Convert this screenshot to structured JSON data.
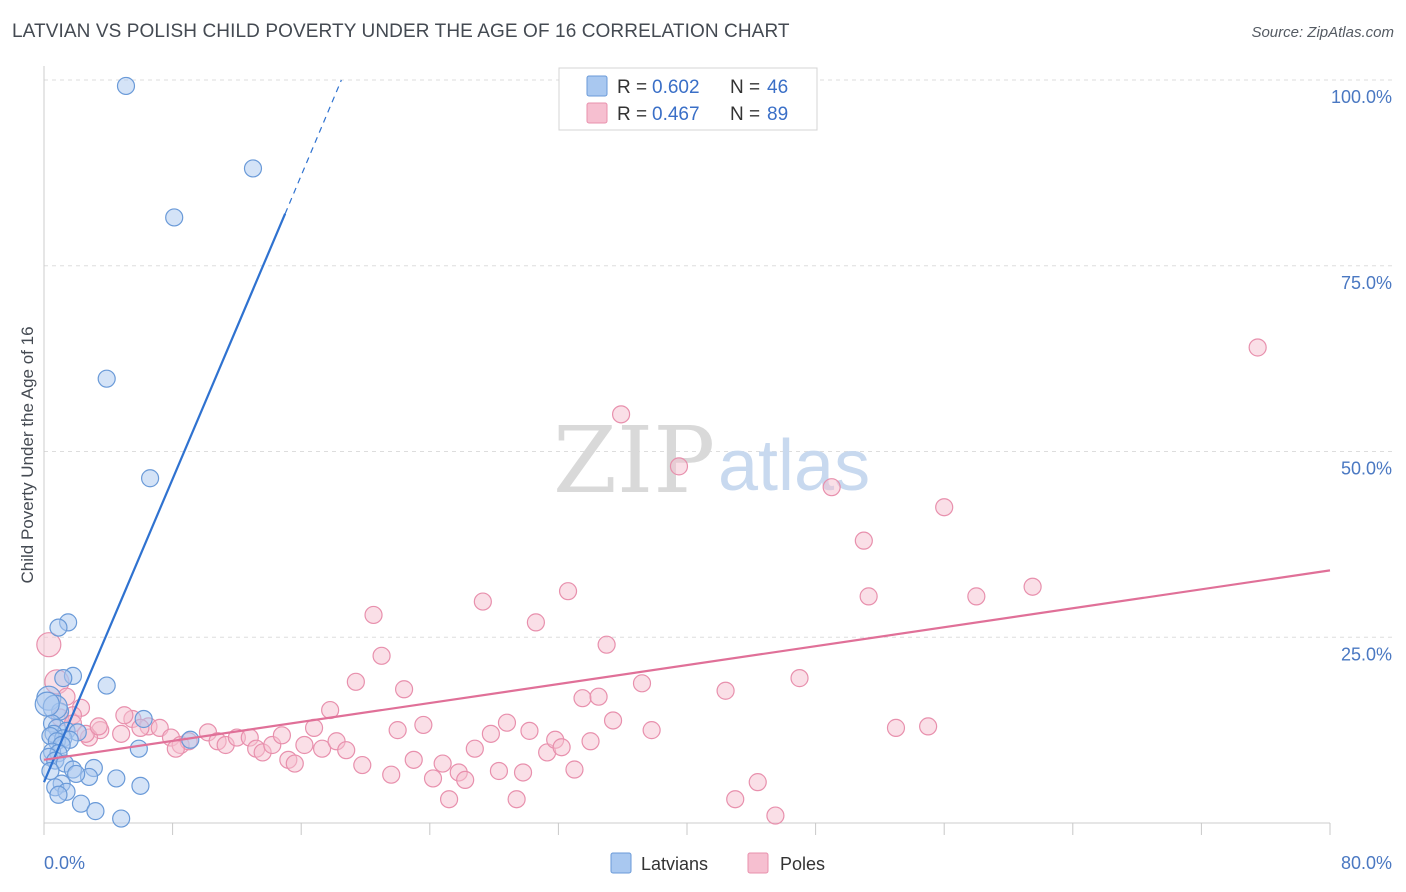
{
  "title": "LATVIAN VS POLISH CHILD POVERTY UNDER THE AGE OF 16 CORRELATION CHART",
  "source": "Source: ZipAtlas.com",
  "watermark": {
    "zip": "ZIP",
    "atlas": "atlas"
  },
  "colors": {
    "latvian_fill": "#a9c8f0",
    "latvian_stroke": "#6a9ad8",
    "latvian_line": "#2f72d0",
    "polish_fill": "#f6bfd0",
    "polish_stroke": "#e890ad",
    "polish_line": "#e07098",
    "tick_label": "#4a78c2",
    "grid": "#dddddd"
  },
  "legend": {
    "series": [
      {
        "r_label": "R =",
        "r_value": "0.602",
        "n_label": "N =",
        "n_value": "46"
      },
      {
        "r_label": "R =",
        "r_value": "0.467",
        "n_label": "N =",
        "n_value": "89"
      }
    ]
  },
  "bottom_legend": [
    "Latvians",
    "Poles"
  ],
  "chart_data": {
    "type": "scatter",
    "title": "LATVIAN VS POLISH CHILD POVERTY UNDER THE AGE OF 16 CORRELATION CHART",
    "xlabel": "",
    "ylabel": "Child Poverty Under the Age of 16",
    "xlim": [
      0,
      80
    ],
    "ylim": [
      0,
      100
    ],
    "x_tick_labels": [
      "0.0%",
      "80.0%"
    ],
    "y_tick_labels": [
      "100.0%",
      "75.0%",
      "50.0%",
      "25.0%"
    ],
    "y_ticks": [
      100,
      75,
      50,
      25
    ],
    "grid": true,
    "legend_position": "top-center",
    "series": [
      {
        "name": "Latvians",
        "points": [
          [
            5.1,
            99.2
          ],
          [
            13.0,
            88.1
          ],
          [
            8.1,
            81.5
          ],
          [
            3.9,
            59.8
          ],
          [
            6.6,
            46.4
          ],
          [
            1.5,
            27.0
          ],
          [
            0.9,
            26.3
          ],
          [
            1.8,
            19.8
          ],
          [
            3.9,
            18.5
          ],
          [
            1.2,
            19.5
          ],
          [
            0.3,
            16.8
          ],
          [
            1.0,
            15.0
          ],
          [
            0.7,
            15.6
          ],
          [
            6.2,
            14.0
          ],
          [
            0.5,
            13.4
          ],
          [
            0.8,
            12.8
          ],
          [
            1.4,
            12.4
          ],
          [
            2.1,
            12.2
          ],
          [
            0.6,
            12.0
          ],
          [
            0.4,
            11.7
          ],
          [
            1.2,
            11.4
          ],
          [
            0.8,
            11.0
          ],
          [
            1.6,
            11.2
          ],
          [
            9.1,
            11.2
          ],
          [
            1.1,
            10.5
          ],
          [
            5.9,
            10.0
          ],
          [
            0.5,
            9.6
          ],
          [
            0.9,
            9.4
          ],
          [
            0.3,
            8.9
          ],
          [
            0.7,
            8.4
          ],
          [
            1.3,
            8.0
          ],
          [
            3.1,
            7.4
          ],
          [
            1.8,
            7.2
          ],
          [
            0.4,
            7.0
          ],
          [
            2.8,
            6.2
          ],
          [
            2.0,
            6.6
          ],
          [
            4.5,
            6.0
          ],
          [
            1.1,
            5.3
          ],
          [
            6.0,
            5.0
          ],
          [
            0.7,
            4.8
          ],
          [
            1.4,
            4.2
          ],
          [
            0.9,
            3.8
          ],
          [
            2.3,
            2.6
          ],
          [
            3.2,
            1.6
          ],
          [
            4.8,
            0.6
          ],
          [
            0.2,
            16.0
          ]
        ]
      },
      {
        "name": "Poles",
        "points": [
          [
            0.3,
            24.0
          ],
          [
            0.8,
            19.0
          ],
          [
            1.4,
            17.0
          ],
          [
            2.3,
            15.5
          ],
          [
            1.8,
            14.5
          ],
          [
            3.5,
            12.5
          ],
          [
            2.8,
            11.5
          ],
          [
            4.8,
            12.0
          ],
          [
            5.5,
            14.0
          ],
          [
            6.5,
            13.0
          ],
          [
            7.2,
            12.8
          ],
          [
            7.9,
            11.5
          ],
          [
            8.5,
            10.5
          ],
          [
            9.0,
            11.0
          ],
          [
            10.2,
            12.2
          ],
          [
            10.8,
            11.0
          ],
          [
            11.3,
            10.5
          ],
          [
            12.0,
            11.5
          ],
          [
            12.8,
            11.5
          ],
          [
            13.2,
            10.0
          ],
          [
            13.6,
            9.5
          ],
          [
            14.2,
            10.5
          ],
          [
            14.8,
            11.8
          ],
          [
            15.2,
            8.5
          ],
          [
            15.6,
            8.0
          ],
          [
            16.2,
            10.5
          ],
          [
            16.8,
            12.8
          ],
          [
            17.3,
            10.0
          ],
          [
            17.8,
            15.2
          ],
          [
            18.2,
            11.0
          ],
          [
            18.8,
            9.8
          ],
          [
            19.4,
            19.0
          ],
          [
            19.8,
            7.8
          ],
          [
            20.5,
            28.0
          ],
          [
            21.0,
            22.5
          ],
          [
            21.6,
            6.5
          ],
          [
            22.0,
            12.5
          ],
          [
            22.4,
            18.0
          ],
          [
            23.0,
            8.5
          ],
          [
            23.6,
            13.2
          ],
          [
            24.2,
            6.0
          ],
          [
            24.8,
            8.0
          ],
          [
            25.2,
            3.2
          ],
          [
            25.8,
            6.8
          ],
          [
            26.2,
            5.8
          ],
          [
            26.8,
            10.0
          ],
          [
            27.3,
            29.8
          ],
          [
            27.8,
            12.0
          ],
          [
            28.3,
            7.0
          ],
          [
            28.8,
            13.5
          ],
          [
            29.4,
            3.2
          ],
          [
            29.8,
            6.8
          ],
          [
            30.2,
            12.4
          ],
          [
            30.6,
            27.0
          ],
          [
            31.3,
            9.5
          ],
          [
            31.8,
            11.2
          ],
          [
            32.2,
            10.2
          ],
          [
            32.6,
            31.2
          ],
          [
            33.0,
            7.2
          ],
          [
            33.5,
            16.8
          ],
          [
            34.0,
            11.0
          ],
          [
            34.5,
            17.0
          ],
          [
            35.0,
            24.0
          ],
          [
            35.4,
            13.8
          ],
          [
            35.9,
            55.0
          ],
          [
            37.2,
            18.8
          ],
          [
            37.8,
            12.5
          ],
          [
            39.5,
            48.0
          ],
          [
            42.4,
            17.8
          ],
          [
            43.0,
            3.2
          ],
          [
            44.4,
            5.5
          ],
          [
            45.5,
            1.0
          ],
          [
            47.0,
            19.5
          ],
          [
            49.0,
            45.2
          ],
          [
            51.0,
            38.0
          ],
          [
            51.3,
            30.5
          ],
          [
            53.0,
            12.8
          ],
          [
            55.0,
            13.0
          ],
          [
            56.0,
            42.5
          ],
          [
            58.0,
            30.5
          ],
          [
            61.5,
            31.8
          ],
          [
            75.5,
            64.0
          ],
          [
            1.0,
            14.2
          ],
          [
            1.8,
            13.4
          ],
          [
            2.6,
            12.0
          ],
          [
            3.4,
            13.0
          ],
          [
            5.0,
            14.5
          ],
          [
            6.0,
            12.8
          ],
          [
            8.2,
            10.0
          ]
        ]
      }
    ],
    "trend_lines": [
      {
        "series": "Latvians",
        "x": [
          0,
          15
        ],
        "y": [
          5.5,
          82
        ],
        "dashed_extension_to": [
          18.5,
          100
        ]
      },
      {
        "series": "Poles",
        "x": [
          0,
          80
        ],
        "y": [
          8.5,
          34
        ]
      }
    ]
  }
}
